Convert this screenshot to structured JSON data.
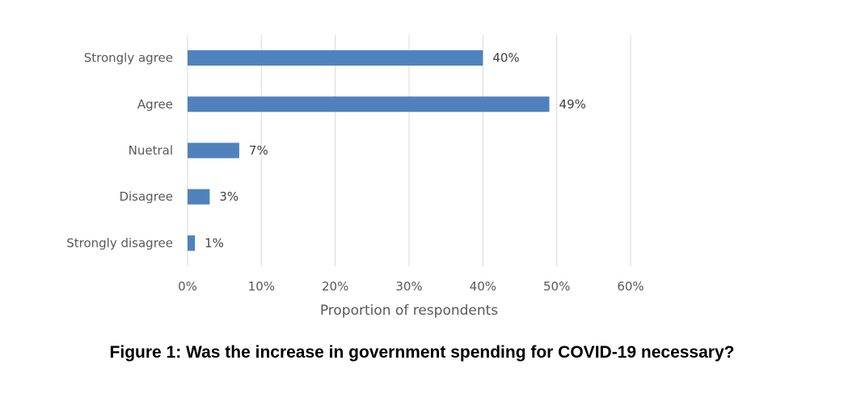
{
  "figure": {
    "caption": "Figure 1: Was the increase in government spending for COVID-19 necessary?"
  },
  "chart_data": {
    "type": "bar",
    "orientation": "horizontal",
    "categories": [
      "Strongly agree",
      "Agree",
      "Nuetral",
      "Disagree",
      "Strongly disagree"
    ],
    "values": [
      40,
      49,
      7,
      3,
      1
    ],
    "value_labels": [
      "40%",
      "49%",
      "7%",
      "3%",
      "1%"
    ],
    "xlabel": "Proportion of respondents",
    "ylabel": "",
    "xlim": [
      0,
      60
    ],
    "x_ticks": [
      "0%",
      "10%",
      "20%",
      "30%",
      "40%",
      "50%",
      "60%"
    ],
    "x_tick_values": [
      0,
      10,
      20,
      30,
      40,
      50,
      60
    ],
    "grid": "vertical",
    "legend": "none",
    "bar_color": "#4f81bd",
    "grid_color": "#d9d9d9"
  }
}
